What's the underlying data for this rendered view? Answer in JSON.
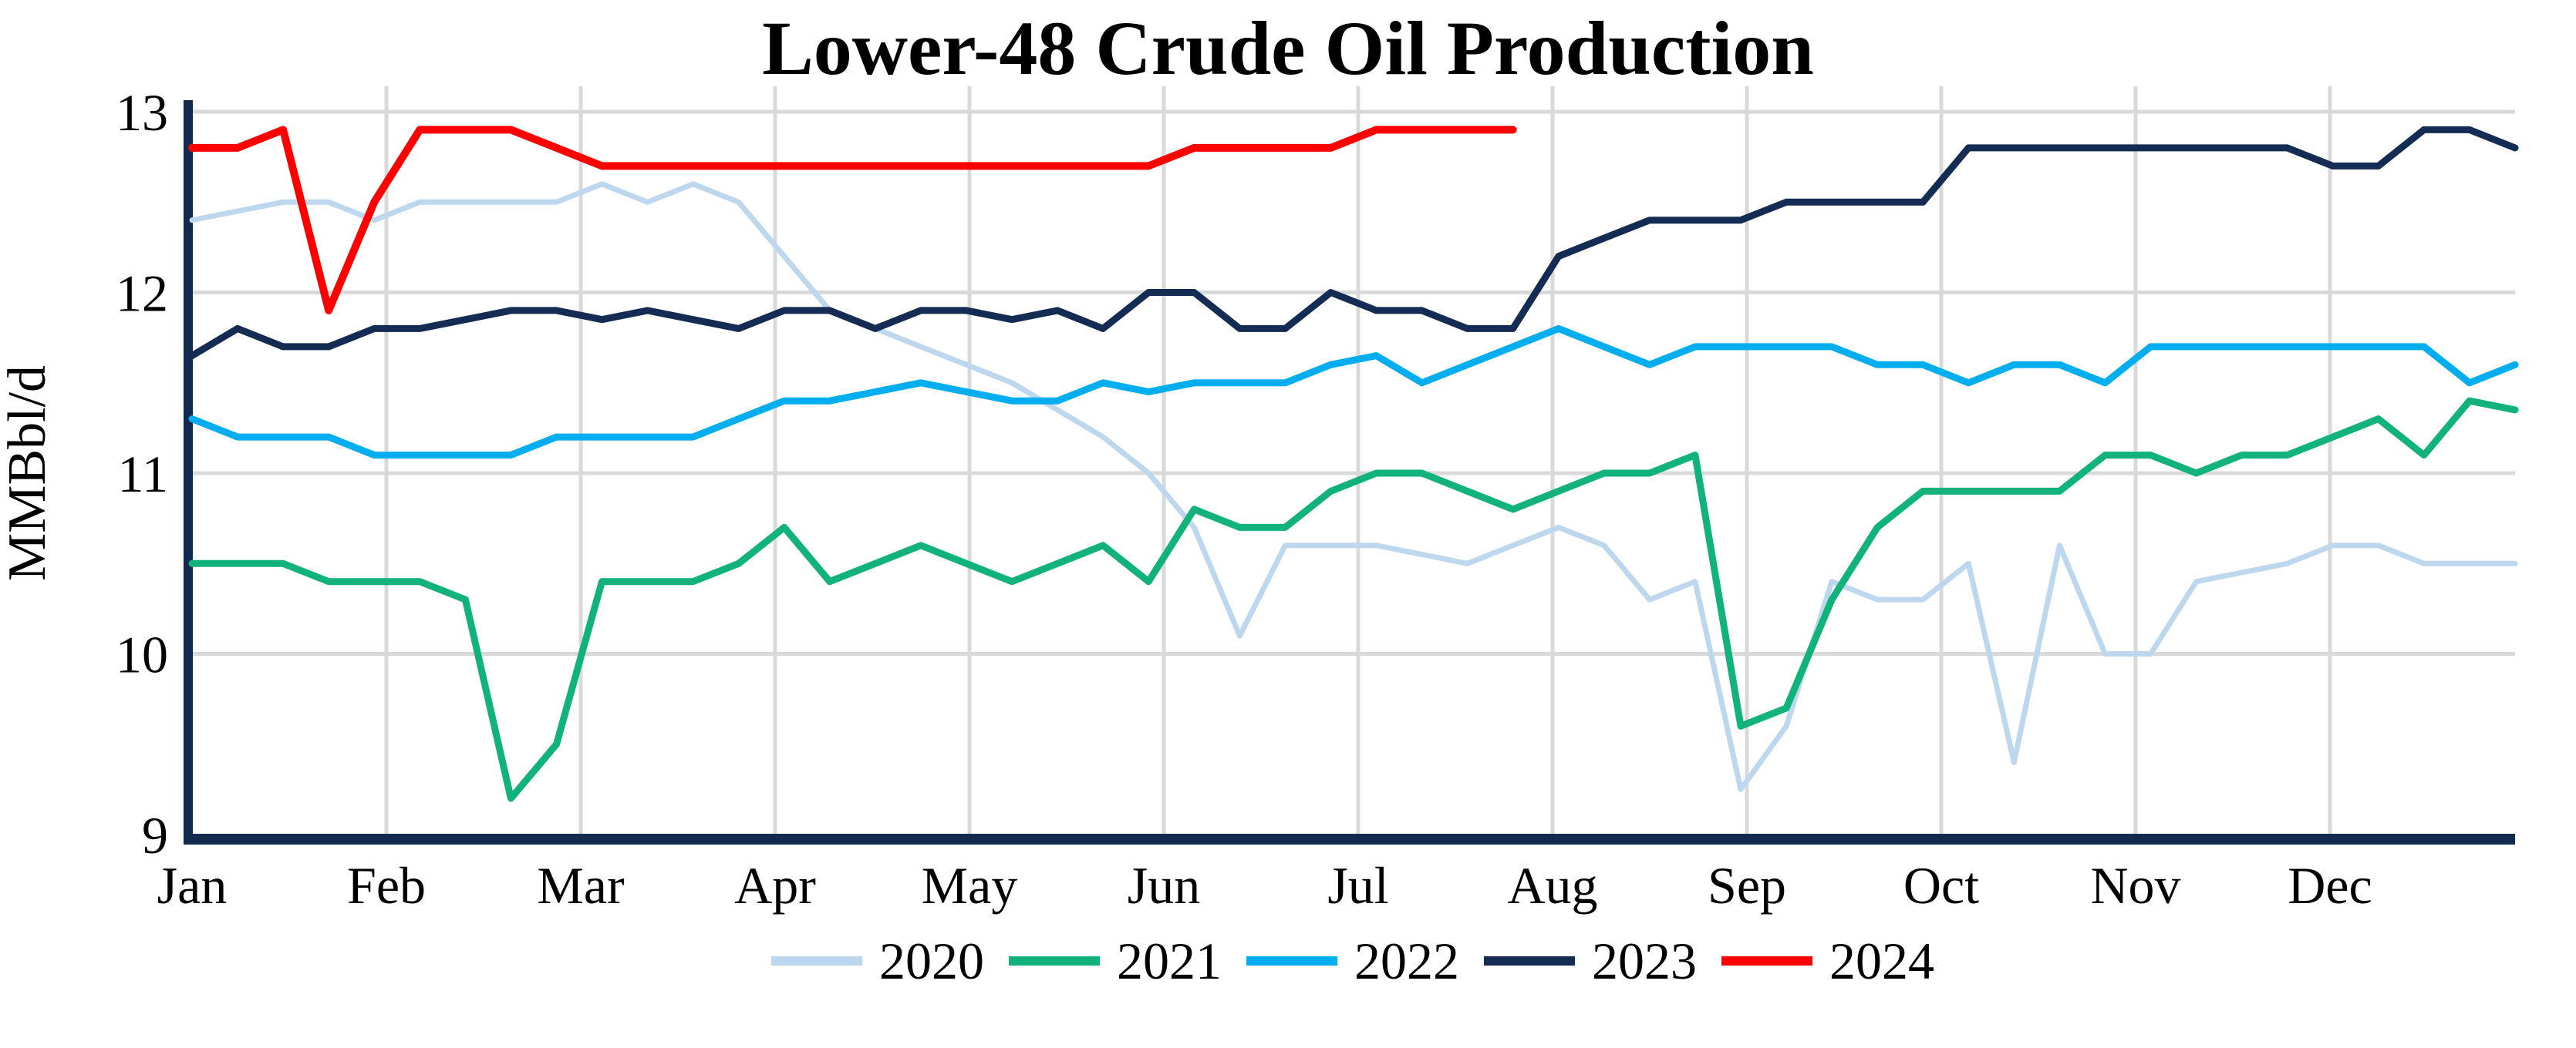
{
  "title": "Lower-48 Crude Oil Production",
  "y_axis": {
    "label": "MMBbl/d",
    "ticks": [
      "13",
      "12",
      "11",
      "10",
      "9"
    ]
  },
  "x_axis": {
    "months": [
      "Jan",
      "Feb",
      "Mar",
      "Apr",
      "May",
      "Jun",
      "Jul",
      "Aug",
      "Sep",
      "Oct",
      "Nov",
      "Dec"
    ]
  },
  "legend": {
    "items": [
      "2020",
      "2021",
      "2022",
      "2023",
      "2024"
    ],
    "position": "bottom-center"
  },
  "colors": {
    "series_2020": "#BDD7EE",
    "series_2021": "#12B37A",
    "series_2022": "#00AEEF",
    "series_2023": "#142C54",
    "series_2024": "#FF0000",
    "gridline": "#D9D9D9",
    "axis": "#122A4D",
    "text": "#000000",
    "background": "#FFFFFF"
  },
  "chart_data": {
    "type": "line",
    "title": "Lower-48 Crude Oil Production",
    "xlabel": "",
    "ylabel": "MMBbl/d",
    "ylim": [
      9,
      13
    ],
    "grid": true,
    "legend_position": "bottom",
    "x_unit": "week of year (weekly data, Jan-Dec)",
    "x_tick_labels": [
      "Jan",
      "Feb",
      "Mar",
      "Apr",
      "May",
      "Jun",
      "Jul",
      "Aug",
      "Sep",
      "Oct",
      "Nov",
      "Dec"
    ],
    "weeks_per_year": 52,
    "series": [
      {
        "name": "2020",
        "color": "#BDD7EE",
        "line_width": 7,
        "values": [
          12.4,
          12.45,
          12.5,
          12.5,
          12.4,
          12.5,
          12.5,
          12.5,
          12.5,
          12.6,
          12.5,
          12.6,
          12.5,
          12.2,
          11.9,
          11.8,
          11.7,
          11.6,
          11.5,
          11.35,
          11.2,
          11.0,
          10.7,
          10.1,
          10.6,
          10.6,
          10.6,
          10.55,
          10.5,
          10.6,
          10.7,
          10.6,
          10.3,
          10.4,
          9.25,
          9.6,
          10.4,
          10.3,
          10.3,
          10.5,
          9.4,
          10.6,
          10.0,
          10.0,
          10.4,
          10.45,
          10.5,
          10.6,
          10.6,
          10.5,
          10.5,
          10.5
        ]
      },
      {
        "name": "2021",
        "color": "#12B37A",
        "line_width": 9,
        "values": [
          10.5,
          10.5,
          10.5,
          10.4,
          10.4,
          10.4,
          10.3,
          9.2,
          9.5,
          10.4,
          10.4,
          10.4,
          10.5,
          10.7,
          10.4,
          10.5,
          10.6,
          10.5,
          10.4,
          10.5,
          10.6,
          10.4,
          10.8,
          10.7,
          10.7,
          10.9,
          11.0,
          11.0,
          10.9,
          10.8,
          10.9,
          11.0,
          11.0,
          11.1,
          9.6,
          9.7,
          10.3,
          10.7,
          10.9,
          10.9,
          10.9,
          10.9,
          11.1,
          11.1,
          11.0,
          11.1,
          11.1,
          11.2,
          11.3,
          11.1,
          11.4,
          11.35
        ]
      },
      {
        "name": "2022",
        "color": "#00AEEF",
        "line_width": 9,
        "values": [
          11.3,
          11.2,
          11.2,
          11.2,
          11.1,
          11.1,
          11.1,
          11.1,
          11.2,
          11.2,
          11.2,
          11.2,
          11.3,
          11.4,
          11.4,
          11.45,
          11.5,
          11.45,
          11.4,
          11.4,
          11.5,
          11.45,
          11.5,
          11.5,
          11.5,
          11.6,
          11.65,
          11.5,
          11.6,
          11.7,
          11.8,
          11.7,
          11.6,
          11.7,
          11.7,
          11.7,
          11.7,
          11.6,
          11.6,
          11.5,
          11.6,
          11.6,
          11.5,
          11.7,
          11.7,
          11.7,
          11.7,
          11.7,
          11.7,
          11.7,
          11.5,
          11.6
        ]
      },
      {
        "name": "2023",
        "color": "#142C54",
        "line_width": 9,
        "values": [
          11.65,
          11.8,
          11.7,
          11.7,
          11.8,
          11.8,
          11.85,
          11.9,
          11.9,
          11.85,
          11.9,
          11.85,
          11.8,
          11.9,
          11.9,
          11.8,
          11.9,
          11.9,
          11.85,
          11.9,
          11.8,
          12.0,
          12.0,
          11.8,
          11.8,
          12.0,
          11.9,
          11.9,
          11.8,
          11.8,
          12.2,
          12.3,
          12.4,
          12.4,
          12.4,
          12.5,
          12.5,
          12.5,
          12.5,
          12.8,
          12.8,
          12.8,
          12.8,
          12.8,
          12.8,
          12.8,
          12.8,
          12.7,
          12.7,
          12.9,
          12.9,
          12.8
        ]
      },
      {
        "name": "2024",
        "color": "#FF0000",
        "line_width": 10,
        "values": [
          12.8,
          12.8,
          12.9,
          11.9,
          12.5,
          12.9,
          12.9,
          12.9,
          12.8,
          12.7,
          12.7,
          12.7,
          12.7,
          12.7,
          12.7,
          12.7,
          12.7,
          12.7,
          12.7,
          12.7,
          12.7,
          12.7,
          12.8,
          12.8,
          12.8,
          12.8,
          12.9,
          12.9,
          12.9,
          12.9
        ]
      }
    ]
  }
}
